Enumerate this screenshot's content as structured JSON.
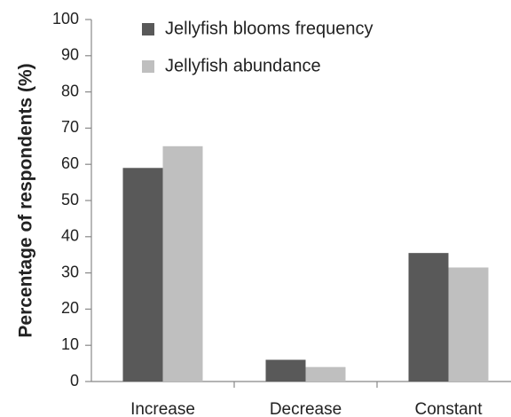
{
  "chart_data": {
    "type": "bar",
    "y_label": "Percentage of respondents (%)",
    "categories": [
      "Increase",
      "Decrease",
      "Constant"
    ],
    "series": [
      {
        "name": "Jellyfish blooms frequency",
        "color": "#595959",
        "values": [
          59,
          6,
          35.5
        ]
      },
      {
        "name": "Jellyfish abundance",
        "color": "#bfbfbf",
        "values": [
          65,
          4,
          31.5
        ]
      }
    ],
    "ylim": [
      0,
      100
    ],
    "yticks": [
      0,
      10,
      20,
      30,
      40,
      50,
      60,
      70,
      80,
      90,
      100
    ],
    "grid": false,
    "legend": "top"
  }
}
